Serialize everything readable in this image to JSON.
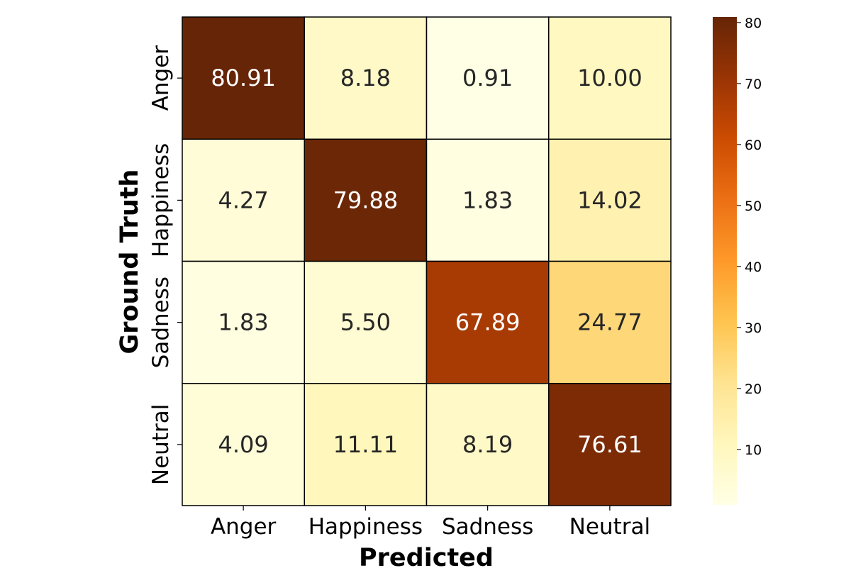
{
  "chart_data": {
    "type": "heatmap",
    "title": "",
    "xlabel": "Predicted",
    "ylabel": "Ground Truth",
    "x_categories": [
      "Anger",
      "Happiness",
      "Sadness",
      "Neutral"
    ],
    "y_categories": [
      "Anger",
      "Happiness",
      "Sadness",
      "Neutral"
    ],
    "values": [
      [
        80.91,
        8.18,
        0.91,
        10.0
      ],
      [
        4.27,
        79.88,
        1.83,
        14.02
      ],
      [
        1.83,
        5.5,
        67.89,
        24.77
      ],
      [
        4.09,
        11.11,
        8.19,
        76.61
      ]
    ],
    "value_format": "2 decimals",
    "colormap": "YlOrBr",
    "color_range": [
      0.91,
      80.91
    ],
    "colorbar": {
      "ticks": [
        10,
        20,
        30,
        40,
        50,
        60,
        70,
        80
      ]
    },
    "grid_lines": true,
    "grid_color": "#000000"
  }
}
